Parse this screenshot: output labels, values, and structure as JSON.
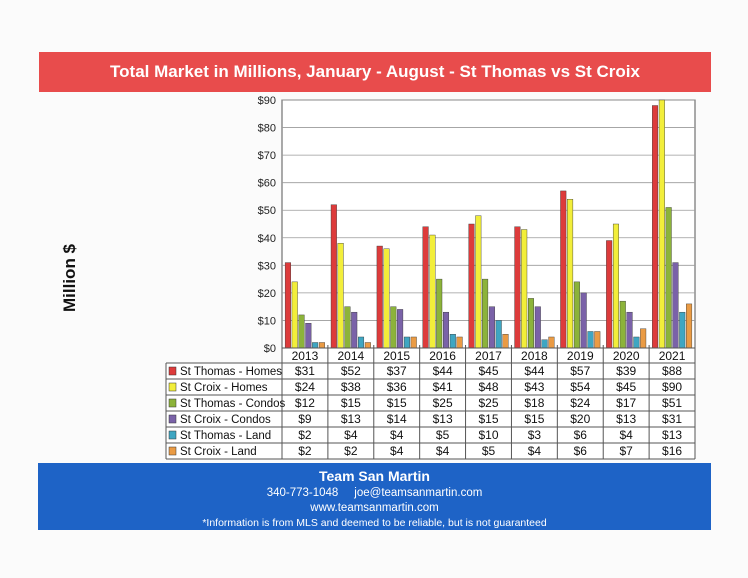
{
  "header": {
    "title": "Total Market in Millions,  January - August - St Thomas vs St Croix"
  },
  "chart_data": {
    "type": "bar",
    "ylabel": "Million $",
    "ylim": [
      0,
      90
    ],
    "y_ticks": [
      "$0",
      "$10",
      "$20",
      "$30",
      "$40",
      "$50",
      "$60",
      "$70",
      "$80",
      "$90"
    ],
    "categories": [
      "2013",
      "2014",
      "2015",
      "2016",
      "2017",
      "2018",
      "2019",
      "2020",
      "2021"
    ],
    "grid": true,
    "legend": "data-table-below",
    "series": [
      {
        "name": "St Thomas - Homes",
        "color": "#dd3b3b",
        "values": [
          31,
          52,
          37,
          44,
          45,
          44,
          57,
          39,
          88
        ],
        "labels": [
          "$31",
          "$52",
          "$37",
          "$44",
          "$45",
          "$44",
          "$57",
          "$39",
          "$88"
        ]
      },
      {
        "name": "St Croix - Homes",
        "color": "#f2ee3a",
        "values": [
          24,
          38,
          36,
          41,
          48,
          43,
          54,
          45,
          90
        ],
        "labels": [
          "$24",
          "$38",
          "$36",
          "$41",
          "$48",
          "$43",
          "$54",
          "$45",
          "$90"
        ]
      },
      {
        "name": "St Thomas - Condos",
        "color": "#8cb33a",
        "values": [
          12,
          15,
          15,
          25,
          25,
          18,
          24,
          17,
          51
        ],
        "labels": [
          "$12",
          "$15",
          "$15",
          "$25",
          "$25",
          "$18",
          "$24",
          "$17",
          "$51"
        ]
      },
      {
        "name": "St Croix - Condos",
        "color": "#7a62a8",
        "values": [
          9,
          13,
          14,
          13,
          15,
          15,
          20,
          13,
          31
        ],
        "labels": [
          "$9",
          "$13",
          "$14",
          "$13",
          "$15",
          "$15",
          "$20",
          "$13",
          "$31"
        ]
      },
      {
        "name": "St Thomas - Land",
        "color": "#3fa6c2",
        "values": [
          2,
          4,
          4,
          5,
          10,
          3,
          6,
          4,
          13
        ],
        "labels": [
          "$2",
          "$4",
          "$4",
          "$5",
          "$10",
          "$3",
          "$6",
          "$4",
          "$13"
        ]
      },
      {
        "name": "St Croix - Land",
        "color": "#ea9b44",
        "values": [
          2,
          2,
          4,
          4,
          5,
          4,
          6,
          7,
          16
        ],
        "labels": [
          "$2",
          "$2",
          "$4",
          "$4",
          "$5",
          "$4",
          "$6",
          "$7",
          "$16"
        ]
      }
    ]
  },
  "footer": {
    "team": "Team San Martin",
    "contact": "340-773-1048     joe@teamsanmartin.com",
    "website": "www.teamsanmartin.com",
    "disclaimer": "*Information is from MLS and deemed to be reliable, but is not guaranteed"
  }
}
